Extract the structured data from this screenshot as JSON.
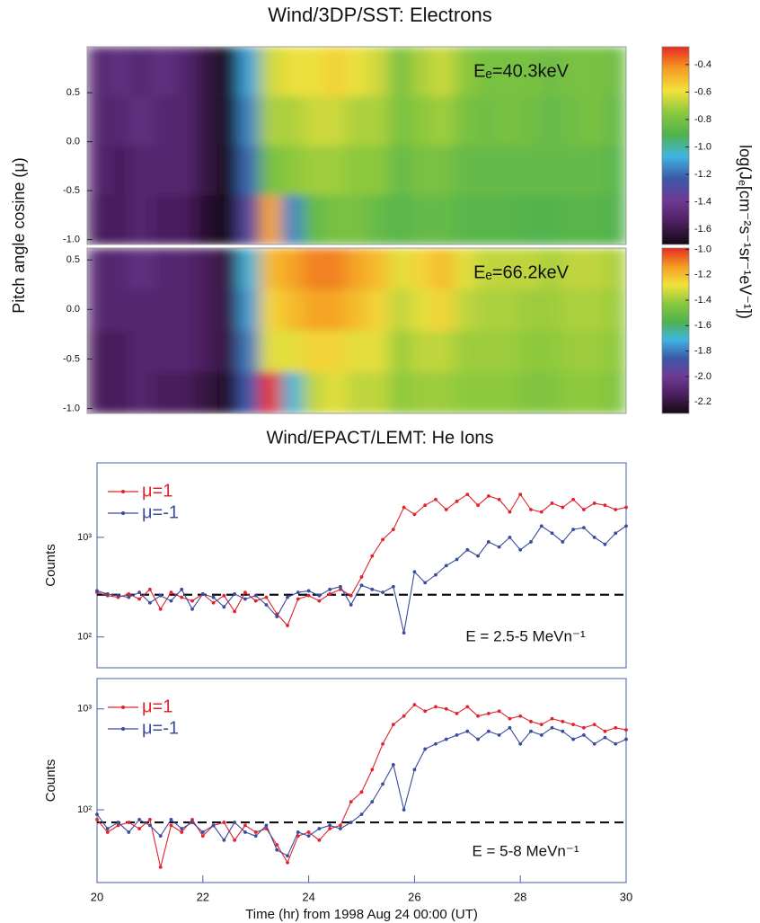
{
  "chart_data": [
    {
      "type": "heatmap",
      "title": "Wind/3DP/SST: Electrons",
      "ylabel": "Pitch angle cosine (μ)",
      "annotation": "Eₑ=40.3keV",
      "xlim": [
        20,
        30
      ],
      "ylim": [
        -1.05,
        0.97
      ],
      "yticks": [
        {
          "value": -1,
          "label": "-1.0"
        },
        -0.5,
        {
          "value": 0,
          "label": "0.0"
        },
        0.5
      ],
      "clim": [
        -1.71,
        -0.27
      ],
      "cticks": [
        -0.4,
        -0.6,
        -0.8,
        {
          "value": -1,
          "label": "-1.0"
        },
        -1.2,
        -1.4,
        -1.6
      ],
      "colorbar_label": "log(Jₑ[cm⁻²s⁻¹sr⁻¹eV⁻¹])",
      "colormap": [
        "#140812",
        "#4a1f5e",
        "#6e3a94",
        "#3c58a8",
        "#3fb4e2",
        "#4fb24e",
        "#8cc83e",
        "#f2e23c",
        "#f59c22",
        "#e62a22"
      ],
      "values": [
        [
          -1.5,
          -1.45,
          -1.5,
          -1.45,
          -1.5,
          -1.6,
          -1.75,
          -1.1,
          -0.65,
          -0.6,
          -0.6,
          -0.55,
          -0.6,
          -0.65,
          -0.8,
          -0.7,
          -0.65,
          -0.75,
          -0.8,
          -0.8,
          -0.8,
          -0.82,
          -0.8,
          -0.8,
          -0.82
        ],
        [
          -1.5,
          -1.5,
          -1.45,
          -1.5,
          -1.5,
          -1.6,
          -1.75,
          -1.15,
          -0.7,
          -0.7,
          -0.65,
          -0.65,
          -0.7,
          -0.7,
          -0.8,
          -0.75,
          -0.72,
          -0.8,
          -0.82,
          -0.8,
          -0.82,
          -0.85,
          -0.82,
          -0.8,
          -0.85
        ],
        [
          -1.5,
          -1.55,
          -1.5,
          -1.5,
          -1.5,
          -1.6,
          -1.75,
          -1.2,
          -0.8,
          -0.75,
          -0.72,
          -0.72,
          -0.75,
          -0.75,
          -0.85,
          -0.8,
          -0.8,
          -0.85,
          -0.85,
          -0.85,
          -0.85,
          -0.85,
          -0.85,
          -0.85,
          -0.88
        ],
        [
          -1.55,
          -1.55,
          -1.5,
          -1.55,
          -1.55,
          -1.65,
          -1.75,
          -1.3,
          -0.45,
          -1.15,
          -0.85,
          -0.8,
          -0.8,
          -0.85,
          -0.88,
          -0.85,
          -0.85,
          -0.88,
          -0.88,
          -0.88,
          -0.9,
          -0.9,
          -0.88,
          -0.88,
          -0.9
        ]
      ]
    },
    {
      "type": "heatmap",
      "annotation": "Eₑ=66.2keV",
      "xlim": [
        20,
        30
      ],
      "ylim": [
        -1.05,
        0.62
      ],
      "yticks": [
        {
          "value": -1,
          "label": "-1.0"
        },
        -0.5,
        {
          "value": 0,
          "label": "0.0"
        },
        0.5
      ],
      "clim": [
        -2.29,
        -0.99
      ],
      "cticks": [
        {
          "value": -1,
          "label": "-1.0"
        },
        -1.2,
        -1.4,
        -1.6,
        -1.8,
        {
          "value": -2,
          "label": "-2.0"
        },
        -2.2
      ],
      "colormap": [
        "#140812",
        "#4a1f5e",
        "#6e3a94",
        "#3c58a8",
        "#3fb4e2",
        "#4fb24e",
        "#8cc83e",
        "#f2e23c",
        "#f59c22",
        "#e62a22"
      ],
      "values": [
        [
          -2.1,
          -2.1,
          -2.05,
          -2.1,
          -2.1,
          -2.15,
          -2.2,
          -1.7,
          -1.2,
          -1.15,
          -1.1,
          -1.1,
          -1.15,
          -1.2,
          -1.3,
          -1.25,
          -1.2,
          -1.3,
          -1.35,
          -1.35,
          -1.35,
          -1.38,
          -1.35,
          -1.35,
          -1.38
        ],
        [
          -2.1,
          -2.1,
          -2.1,
          -2.1,
          -2.1,
          -2.15,
          -2.2,
          -1.75,
          -1.25,
          -1.2,
          -1.15,
          -1.15,
          -1.2,
          -1.25,
          -1.35,
          -1.3,
          -1.25,
          -1.35,
          -1.38,
          -1.38,
          -1.4,
          -1.4,
          -1.38,
          -1.38,
          -1.4
        ],
        [
          -2.15,
          -2.15,
          -2.1,
          -2.1,
          -2.1,
          -2.15,
          -2.2,
          -1.8,
          -1.3,
          -1.3,
          -1.25,
          -1.25,
          -1.3,
          -1.3,
          -1.4,
          -1.35,
          -1.35,
          -1.4,
          -1.4,
          -1.4,
          -1.42,
          -1.42,
          -1.4,
          -1.4,
          -1.42
        ],
        [
          -2.15,
          -2.15,
          -2.1,
          -2.15,
          -2.15,
          -2.2,
          -2.25,
          -1.85,
          -1.0,
          -1.7,
          -1.35,
          -1.3,
          -1.35,
          -1.35,
          -1.42,
          -1.4,
          -1.4,
          -1.42,
          -1.42,
          -1.42,
          -1.45,
          -1.45,
          -1.42,
          -1.42,
          -1.45
        ]
      ]
    },
    {
      "type": "line",
      "title": "Wind/EPACT/LEMT: He Ions",
      "ylabel": "Counts",
      "log_scale": true,
      "legend": "upper left",
      "annotation": "E = 2.5-5 MeVn⁻¹",
      "reference_line": 265,
      "xlim": [
        20,
        30
      ],
      "ylim": [
        49,
        5600
      ],
      "yticks": [
        {
          "value": 100,
          "label": "10²"
        },
        {
          "value": 1000,
          "label": "10³"
        }
      ],
      "x": [
        20,
        20.2,
        20.4,
        20.6,
        20.8,
        21,
        21.2,
        21.4,
        21.6,
        21.8,
        22,
        22.2,
        22.4,
        22.6,
        22.8,
        23,
        23.2,
        23.4,
        23.6,
        23.8,
        24,
        24.2,
        24.4,
        24.6,
        24.8,
        25,
        25.2,
        25.4,
        25.6,
        25.8,
        26,
        26.2,
        26.4,
        26.6,
        26.8,
        27,
        27.2,
        27.4,
        27.6,
        27.8,
        28,
        28.2,
        28.4,
        28.6,
        28.8,
        29,
        29.2,
        29.4,
        29.6,
        29.8,
        30
      ],
      "series": [
        {
          "name": "μ=1",
          "color": "#e0242e",
          "values": [
            280,
            260,
            250,
            270,
            240,
            300,
            190,
            280,
            250,
            230,
            270,
            220,
            260,
            180,
            280,
            230,
            250,
            170,
            130,
            240,
            260,
            230,
            270,
            300,
            260,
            400,
            650,
            950,
            1200,
            2000,
            1700,
            2100,
            2400,
            1900,
            2300,
            2700,
            2100,
            2600,
            2400,
            1800,
            2700,
            1900,
            1800,
            2200,
            2000,
            2400,
            1900,
            2200,
            2100,
            1900,
            2000
          ]
        },
        {
          "name": "μ=-1",
          "color": "#3a4c9c",
          "values": [
            290,
            270,
            260,
            250,
            280,
            220,
            260,
            230,
            300,
            190,
            270,
            250,
            200,
            270,
            240,
            260,
            210,
            160,
            250,
            280,
            290,
            260,
            300,
            320,
            210,
            330,
            300,
            280,
            320,
            110,
            450,
            350,
            420,
            520,
            600,
            750,
            650,
            900,
            800,
            1000,
            750,
            900,
            1300,
            1100,
            900,
            1200,
            1250,
            1000,
            850,
            1100,
            1300
          ]
        }
      ]
    },
    {
      "type": "line",
      "ylabel": "Counts",
      "log_scale": true,
      "legend": "upper left",
      "annotation": "E = 5-8 MeVn⁻¹",
      "reference_line": 75,
      "xlabel": "Time (hr) from 1998 Aug 24 00:00 (UT)",
      "xlim": [
        20,
        30
      ],
      "xticks": [
        20,
        22,
        24,
        26,
        28,
        30
      ],
      "ylim": [
        19,
        2000
      ],
      "yticks": [
        {
          "value": 100,
          "label": "10²"
        },
        {
          "value": 1000,
          "label": "10³"
        }
      ],
      "x": [
        20,
        20.2,
        20.4,
        20.6,
        20.8,
        21,
        21.2,
        21.4,
        21.6,
        21.8,
        22,
        22.2,
        22.4,
        22.6,
        22.8,
        23,
        23.2,
        23.4,
        23.6,
        23.8,
        24,
        24.2,
        24.4,
        24.6,
        24.8,
        25,
        25.2,
        25.4,
        25.6,
        25.8,
        26,
        26.2,
        26.4,
        26.6,
        26.8,
        27,
        27.2,
        27.4,
        27.6,
        27.8,
        28,
        28.2,
        28.4,
        28.6,
        28.8,
        29,
        29.2,
        29.4,
        29.6,
        29.8,
        30
      ],
      "series": [
        {
          "name": "μ=1",
          "color": "#e0242e",
          "values": [
            80,
            60,
            70,
            75,
            65,
            80,
            27,
            70,
            60,
            80,
            55,
            70,
            75,
            50,
            70,
            60,
            65,
            45,
            30,
            55,
            60,
            50,
            65,
            70,
            120,
            150,
            250,
            450,
            700,
            850,
            1100,
            950,
            1050,
            1000,
            900,
            1050,
            850,
            900,
            950,
            800,
            850,
            750,
            700,
            800,
            750,
            700,
            650,
            700,
            600,
            650,
            620
          ]
        },
        {
          "name": "μ=-1",
          "color": "#3a4c9c",
          "values": [
            90,
            65,
            75,
            60,
            80,
            70,
            55,
            80,
            65,
            75,
            60,
            70,
            50,
            75,
            60,
            55,
            70,
            40,
            35,
            60,
            55,
            65,
            70,
            65,
            75,
            90,
            120,
            180,
            280,
            100,
            250,
            400,
            450,
            500,
            550,
            600,
            500,
            600,
            550,
            650,
            450,
            600,
            550,
            650,
            600,
            500,
            550,
            450,
            520,
            450,
            500
          ]
        }
      ]
    }
  ]
}
